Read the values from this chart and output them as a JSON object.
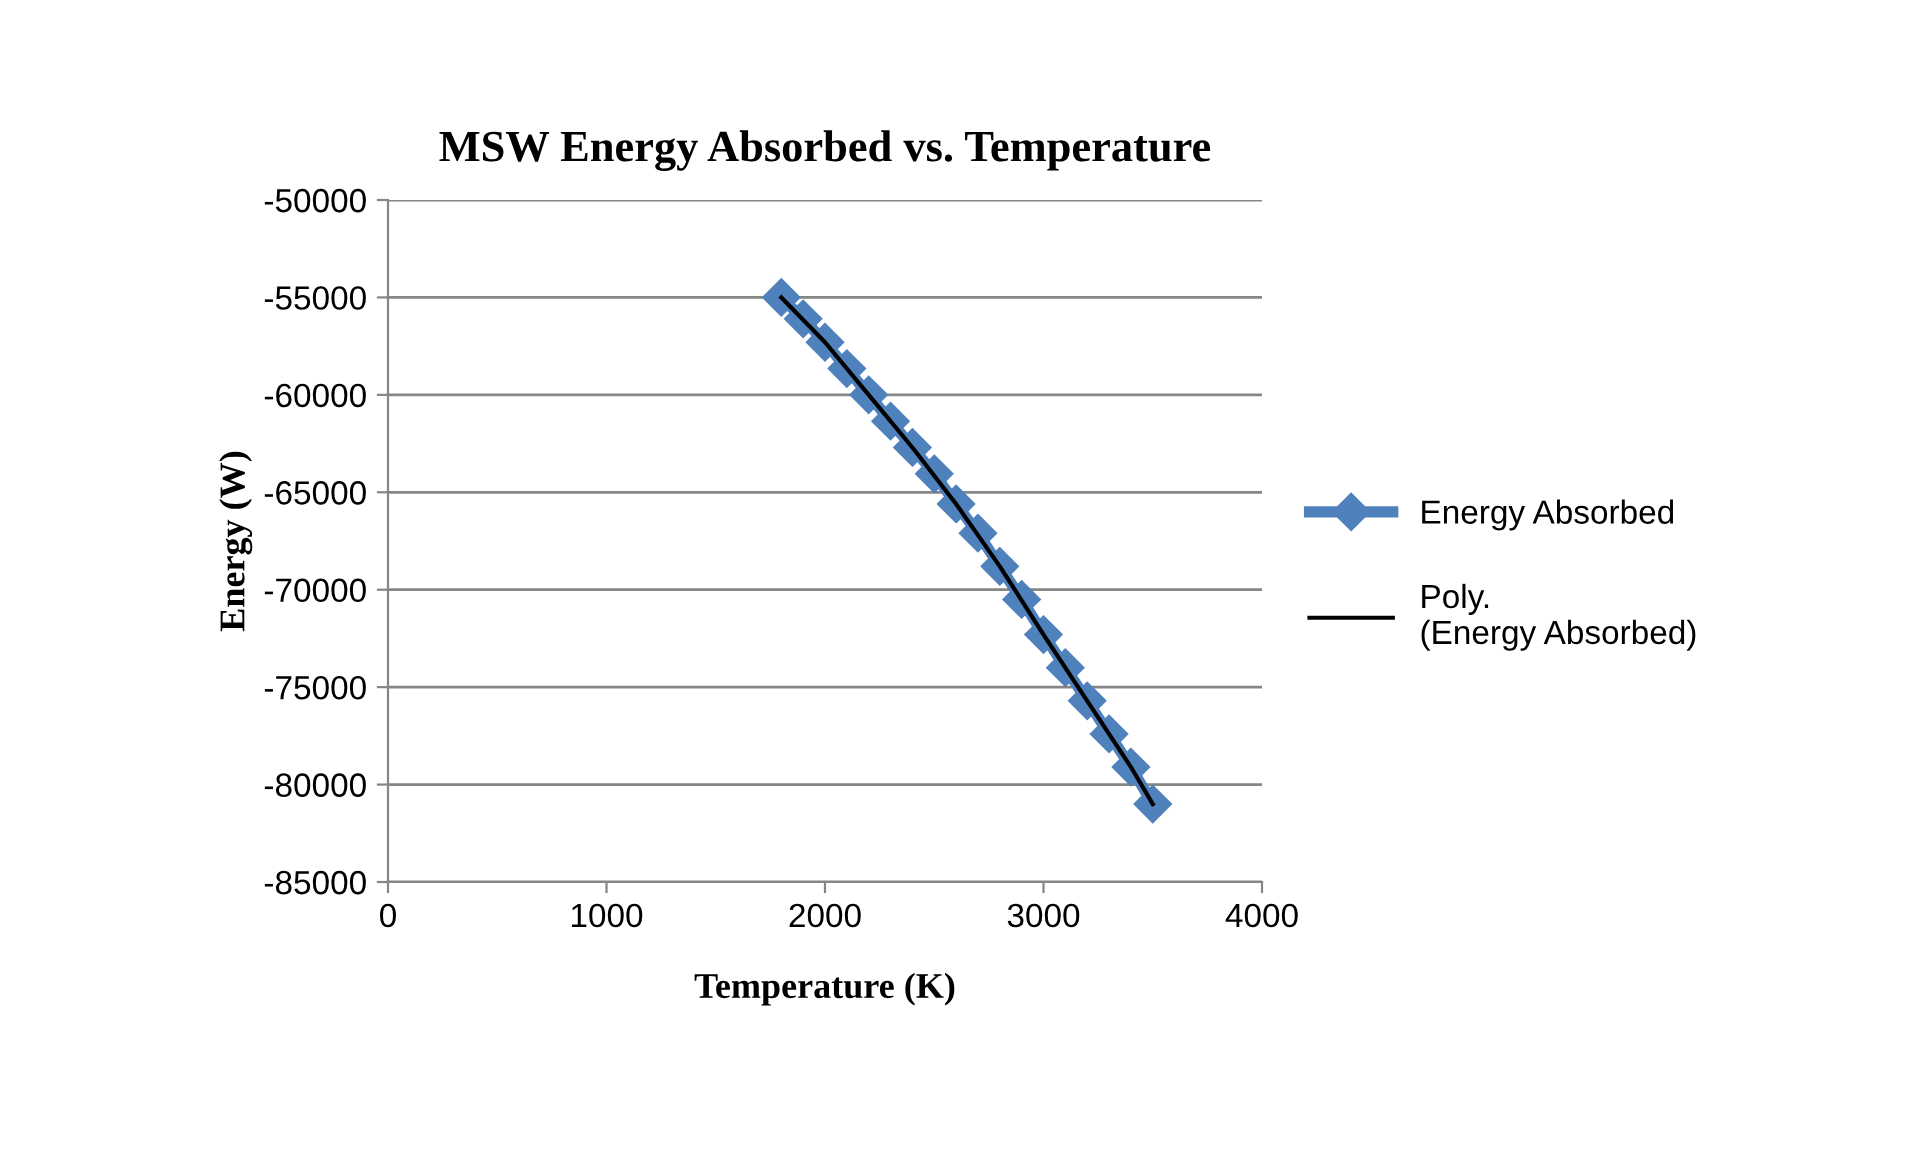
{
  "chart_data": {
    "type": "line",
    "title": "MSW Energy Absorbed vs. Temperature",
    "xlabel": "Temperature (K)",
    "ylabel": "Energy (W)",
    "xlim": [
      0,
      4000
    ],
    "xticks": [
      0,
      1000,
      2000,
      3000,
      4000
    ],
    "ylim": [
      -85000,
      -50000
    ],
    "yticks": [
      -85000,
      -80000,
      -75000,
      -70000,
      -65000,
      -60000,
      -55000,
      -50000
    ],
    "grid": "y",
    "legend": "right",
    "series": [
      {
        "name": "Energy Absorbed",
        "color": "#4f81bd",
        "marker": "diamond",
        "x": [
          1800,
          1900,
          2000,
          2100,
          2200,
          2300,
          2400,
          2500,
          2600,
          2700,
          2800,
          2900,
          3000,
          3100,
          3200,
          3300,
          3400,
          3500
        ],
        "values": [
          -55000,
          -56100,
          -57300,
          -58650,
          -60000,
          -61350,
          -62700,
          -64050,
          -65600,
          -67100,
          -68800,
          -70500,
          -72300,
          -74000,
          -75700,
          -77400,
          -79100,
          -81000
        ]
      },
      {
        "name": "Poly. (Energy Absorbed)",
        "color": "#000000",
        "marker": "none",
        "x": [
          1800,
          2000,
          2200,
          2400,
          2600,
          2800,
          3000,
          3200,
          3400,
          3500
        ],
        "values": [
          -55000,
          -57300,
          -60000,
          -62700,
          -65600,
          -68800,
          -72300,
          -75700,
          -79100,
          -81000
        ]
      }
    ]
  }
}
